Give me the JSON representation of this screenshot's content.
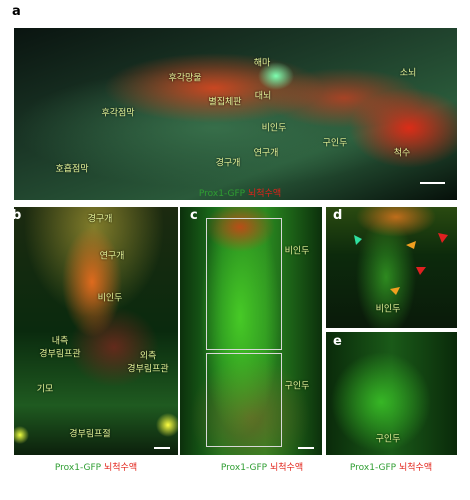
{
  "figure": {
    "panels": [
      {
        "label": "a",
        "annotations": [
          "해마",
          "대뇌",
          "후각망울",
          "별집체판",
          "후각점막",
          "소뇌",
          "비인두",
          "구인두",
          "척수",
          "경구개",
          "연구개",
          "호흡점막"
        ],
        "caption": {
          "marker": "Prox1-GFP",
          "tracer": "뇌척수액"
        }
      },
      {
        "label": "b",
        "annotations": [
          "경구개",
          "연구개",
          "비인두",
          "내측",
          "경부림프관",
          "외측",
          "경부림프관",
          "기모",
          "경부림프절"
        ],
        "caption": {
          "marker": "Prox1-GFP",
          "tracer": "뇌척수액"
        }
      },
      {
        "label": "c",
        "annotations": [
          "비인두",
          "구인두"
        ],
        "caption": {
          "marker": "Prox1-GFP",
          "tracer": "뇌척수액"
        }
      },
      {
        "label": "d",
        "annotations": [
          "비인두"
        ]
      },
      {
        "label": "e",
        "annotations": [
          "구인두"
        ],
        "caption": {
          "marker": "Prox1-GFP",
          "tracer": "뇌척수액"
        }
      }
    ]
  }
}
